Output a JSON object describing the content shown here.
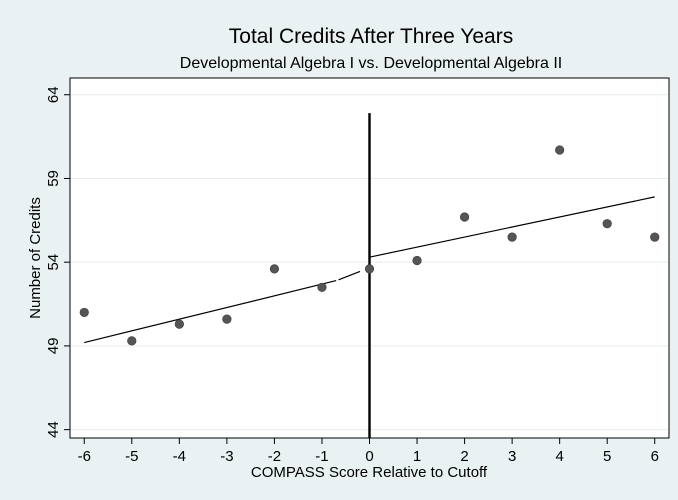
{
  "chart_data": {
    "type": "scatter",
    "title": "Total Credits After Three Years",
    "subtitle": "Developmental Algebra I vs. Developmental Algebra II",
    "xlabel": "COMPASS Score Relative to Cutoff",
    "ylabel": "Number of Credits",
    "xlim": [
      -6.3,
      6.3
    ],
    "ylim": [
      43.5,
      65
    ],
    "xticks": [
      -6,
      -5,
      -4,
      -3,
      -2,
      -1,
      0,
      1,
      2,
      3,
      4,
      5,
      6
    ],
    "yticks": [
      44,
      49,
      54,
      59,
      64
    ],
    "grid": true,
    "points": [
      {
        "x": -6,
        "y": 51.0
      },
      {
        "x": -5,
        "y": 49.3
      },
      {
        "x": -4,
        "y": 50.3
      },
      {
        "x": -3,
        "y": 50.6
      },
      {
        "x": -2,
        "y": 53.6
      },
      {
        "x": -1,
        "y": 52.5
      },
      {
        "x": 0,
        "y": 53.6
      },
      {
        "x": 1,
        "y": 54.1
      },
      {
        "x": 2,
        "y": 56.7
      },
      {
        "x": 3,
        "y": 55.5
      },
      {
        "x": 4,
        "y": 60.7
      },
      {
        "x": 5,
        "y": 56.3
      },
      {
        "x": 6,
        "y": 55.5
      }
    ],
    "fit_lines": [
      {
        "x": [
          -6,
          -0.7
        ],
        "y": [
          49.2,
          52.9
        ]
      },
      {
        "x": [
          -0.65,
          -0.2
        ],
        "y": [
          52.95,
          53.45
        ]
      },
      {
        "x": [
          0,
          6
        ],
        "y": [
          54.3,
          57.9
        ]
      }
    ],
    "cutoff_line": {
      "x": 0,
      "y": [
        43.5,
        62.9
      ]
    }
  }
}
